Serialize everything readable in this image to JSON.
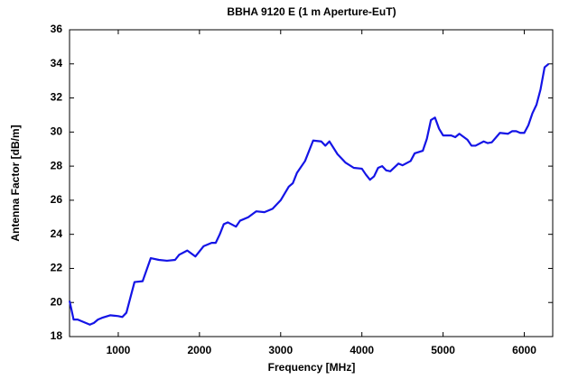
{
  "chart_data": {
    "type": "line",
    "title": "BBHA 9120 E (1 m Aperture-EuT)",
    "x_label": "Frequency [MHz]",
    "y_label": "Antenna Factor [dB/m]",
    "x": [
      400,
      450,
      500,
      550,
      600,
      650,
      700,
      750,
      800,
      900,
      1000,
      1050,
      1100,
      1150,
      1200,
      1300,
      1400,
      1500,
      1600,
      1700,
      1750,
      1850,
      1950,
      2050,
      2150,
      2200,
      2250,
      2300,
      2350,
      2450,
      2500,
      2600,
      2700,
      2800,
      2900,
      3000,
      3100,
      3150,
      3200,
      3300,
      3400,
      3500,
      3550,
      3600,
      3700,
      3800,
      3900,
      4000,
      4050,
      4100,
      4150,
      4200,
      4250,
      4300,
      4350,
      4450,
      4500,
      4600,
      4650,
      4750,
      4800,
      4850,
      4900,
      4950,
      5000,
      5100,
      5150,
      5200,
      5300,
      5350,
      5400,
      5500,
      5550,
      5600,
      5700,
      5800,
      5850,
      5900,
      5950,
      6000,
      6050,
      6100,
      6150,
      6200,
      6250,
      6300
    ],
    "series": [
      {
        "name": "Antenna Factor",
        "color": "#1414e6",
        "values": [
          20.1,
          19.0,
          19.0,
          18.9,
          18.8,
          18.7,
          18.8,
          19.0,
          19.1,
          19.25,
          19.2,
          19.15,
          19.4,
          20.3,
          21.2,
          21.25,
          22.6,
          22.5,
          22.45,
          22.5,
          22.8,
          23.05,
          22.7,
          23.3,
          23.5,
          23.5,
          24.0,
          24.6,
          24.7,
          24.45,
          24.8,
          25.0,
          25.35,
          25.3,
          25.5,
          26.0,
          26.8,
          27.0,
          27.6,
          28.3,
          29.5,
          29.45,
          29.2,
          29.45,
          28.7,
          28.2,
          27.9,
          27.85,
          27.5,
          27.2,
          27.4,
          27.9,
          28.0,
          27.75,
          27.7,
          28.15,
          28.05,
          28.3,
          28.75,
          28.9,
          29.6,
          30.7,
          30.85,
          30.2,
          29.8,
          29.8,
          29.7,
          29.9,
          29.55,
          29.2,
          29.2,
          29.45,
          29.35,
          29.4,
          29.95,
          29.9,
          30.05,
          30.05,
          29.95,
          29.95,
          30.4,
          31.1,
          31.6,
          32.5,
          33.8,
          34.0
        ]
      }
    ],
    "xlim": [
      400,
      6350
    ],
    "xticks": [
      1000,
      2000,
      3000,
      4000,
      5000,
      6000
    ],
    "ylim": [
      18,
      36
    ],
    "yticks": [
      18,
      20,
      22,
      24,
      26,
      28,
      30,
      32,
      34,
      36
    ],
    "grid": false
  }
}
